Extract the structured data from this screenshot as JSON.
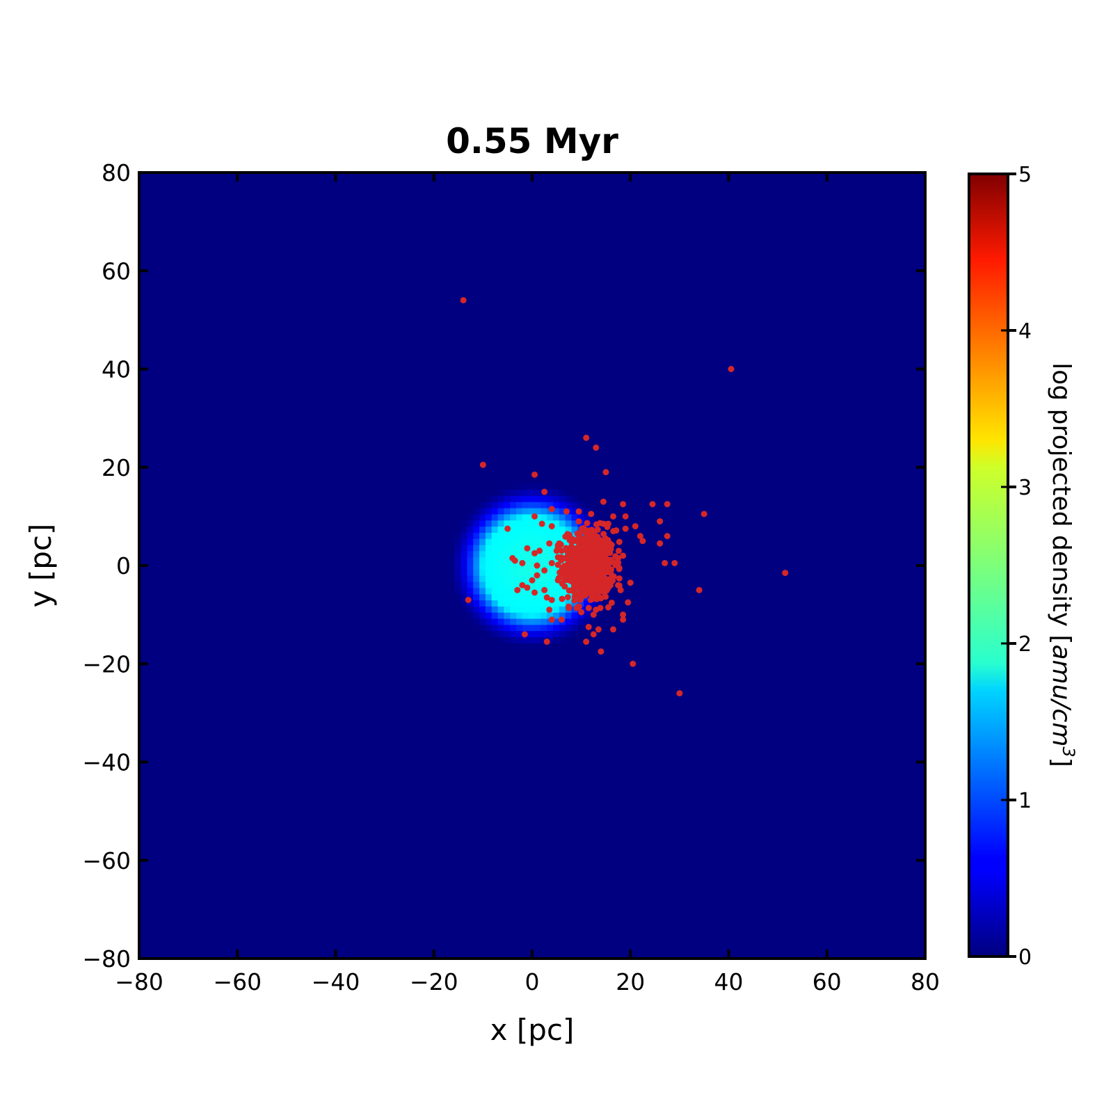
{
  "chart_data": {
    "type": "heatmap",
    "title": "0.55 Myr",
    "xlabel": "x [pc]",
    "ylabel": "y [pc]",
    "xlim": [
      -80,
      80
    ],
    "ylim": [
      -80,
      80
    ],
    "xticks": [
      -80,
      -60,
      -40,
      -20,
      0,
      20,
      40,
      60,
      80
    ],
    "yticks": [
      -80,
      -60,
      -40,
      -20,
      0,
      20,
      40,
      60,
      80
    ],
    "xtick_labels": [
      "−80",
      "−60",
      "−40",
      "−20",
      "0",
      "20",
      "40",
      "60",
      "80"
    ],
    "ytick_labels": [
      "−80",
      "−60",
      "−40",
      "−20",
      "0",
      "20",
      "40",
      "60",
      "80"
    ],
    "grid": false,
    "colormap": "jet",
    "background_value": 0,
    "density_blob": {
      "center": [
        0,
        0
      ],
      "core_radius_pc": 10,
      "outer_radius_pc": 17,
      "peak_log_density": 2.0
    },
    "colorbar": {
      "label_prefix": "log projected density [",
      "label_unit": "amu/cm",
      "label_exponent": "3",
      "label_suffix": "]",
      "range": [
        0,
        5
      ],
      "ticks": [
        0,
        1,
        2,
        3,
        4,
        5
      ],
      "tick_labels": [
        "0",
        "1",
        "2",
        "3",
        "4",
        "5"
      ]
    },
    "scatter_color": "#d62728",
    "cluster": {
      "center": [
        11.5,
        0
      ],
      "sigma_x": 2.6,
      "sigma_y": 3.6,
      "count": 600
    },
    "stars": [
      [
        -14,
        54
      ],
      [
        40.5,
        40
      ],
      [
        11,
        26
      ],
      [
        13,
        24
      ],
      [
        -10,
        20.5
      ],
      [
        15,
        19
      ],
      [
        0.5,
        18.5
      ],
      [
        2.5,
        15
      ],
      [
        14.5,
        13
      ],
      [
        18.5,
        12.5
      ],
      [
        24.5,
        12.5
      ],
      [
        27.5,
        12.5
      ],
      [
        4,
        11.5
      ],
      [
        7,
        11
      ],
      [
        9.5,
        11
      ],
      [
        12,
        10.5
      ],
      [
        16.5,
        10
      ],
      [
        19,
        10
      ],
      [
        35,
        10.5
      ],
      [
        0.5,
        10
      ],
      [
        9.5,
        9
      ],
      [
        26,
        9
      ],
      [
        2,
        8.5
      ],
      [
        4,
        8
      ],
      [
        14.5,
        8.5
      ],
      [
        15.5,
        8.5
      ],
      [
        21,
        8
      ],
      [
        19,
        7.5
      ],
      [
        -5,
        7.5
      ],
      [
        22,
        6
      ],
      [
        27.5,
        6
      ],
      [
        22.5,
        5
      ],
      [
        26,
        4.5
      ],
      [
        3.5,
        4.5
      ],
      [
        5.5,
        4.5
      ],
      [
        6,
        3
      ],
      [
        -1,
        3.5
      ],
      [
        1.5,
        3
      ],
      [
        5,
        3
      ],
      [
        0.5,
        2.5
      ],
      [
        -4,
        1.5
      ],
      [
        -3.5,
        1
      ],
      [
        -2,
        0.5
      ],
      [
        4,
        0.5
      ],
      [
        1,
        0
      ],
      [
        18.5,
        2
      ],
      [
        17.5,
        1.5
      ],
      [
        27,
        0.5
      ],
      [
        29,
        0.5
      ],
      [
        51.5,
        -1.5
      ],
      [
        2.5,
        -1
      ],
      [
        1,
        -2
      ],
      [
        0,
        -3
      ],
      [
        -2,
        -4
      ],
      [
        -1,
        -4.5
      ],
      [
        0.5,
        -5.5
      ],
      [
        2.5,
        -5
      ],
      [
        3,
        -6.5
      ],
      [
        4,
        -7
      ],
      [
        17.5,
        -4
      ],
      [
        18,
        -5
      ],
      [
        20,
        -3.5
      ],
      [
        34,
        -5
      ],
      [
        19.5,
        -7.5
      ],
      [
        15.5,
        -8.5
      ],
      [
        13,
        -9
      ],
      [
        18.5,
        -10
      ],
      [
        18.5,
        -11
      ],
      [
        12.5,
        -10
      ],
      [
        10,
        -9.5
      ],
      [
        6,
        -11
      ],
      [
        4,
        -11
      ],
      [
        -13,
        -7
      ],
      [
        -1.5,
        -14
      ],
      [
        3,
        -15.5
      ],
      [
        11,
        -15.5
      ],
      [
        12.5,
        -14
      ],
      [
        13.5,
        -13
      ],
      [
        14,
        -17.5
      ],
      [
        20.5,
        -20
      ],
      [
        30,
        -26
      ],
      [
        -3,
        -5
      ],
      [
        3.5,
        -9
      ],
      [
        11.5,
        -12.5
      ],
      [
        16.5,
        -13
      ]
    ]
  }
}
